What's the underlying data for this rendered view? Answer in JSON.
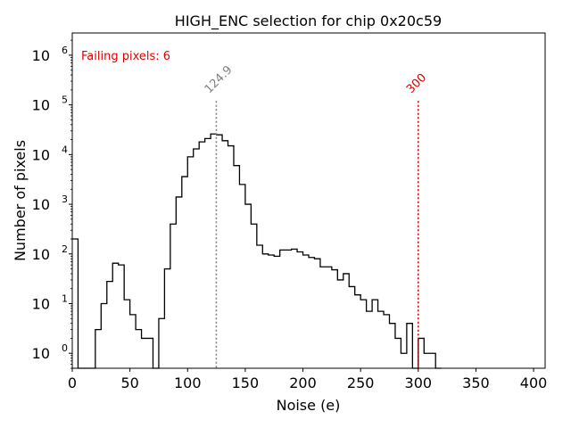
{
  "chart_data": {
    "type": "histogram",
    "title": "HIGH_ENC selection for chip 0x20c59",
    "xlabel": "Noise (e)",
    "ylabel": "Number of pixels",
    "xlim": [
      0,
      410
    ],
    "ylim": [
      0.5,
      2800000
    ],
    "yscale": "log",
    "x_ticks": [
      0,
      50,
      100,
      150,
      200,
      250,
      300,
      350,
      400
    ],
    "y_ticks": [
      1,
      10,
      100,
      1000,
      10000,
      100000,
      1000000
    ],
    "bin_width": 5,
    "bin_edges_start": 0,
    "counts": [
      200,
      0,
      0,
      0,
      3,
      10,
      28,
      65,
      60,
      12,
      6,
      3,
      2,
      2,
      0,
      5,
      50,
      400,
      1400,
      3600,
      9000,
      13000,
      18000,
      21000,
      26000,
      25000,
      19000,
      15000,
      6000,
      2500,
      1000,
      400,
      150,
      100,
      95,
      90,
      120,
      120,
      125,
      110,
      95,
      85,
      80,
      55,
      55,
      48,
      30,
      40,
      22,
      15,
      12,
      7,
      12,
      7,
      6,
      4,
      2,
      1,
      4,
      0,
      2,
      1,
      1,
      0
    ],
    "annotations": {
      "failing_text": "Failing pixels: 6",
      "lines": [
        {
          "x": 124.9,
          "label": "124.9",
          "color": "#808080"
        },
        {
          "x": 300,
          "label": "300",
          "color": "#e00000"
        }
      ]
    },
    "legend": "none",
    "grid": false
  }
}
